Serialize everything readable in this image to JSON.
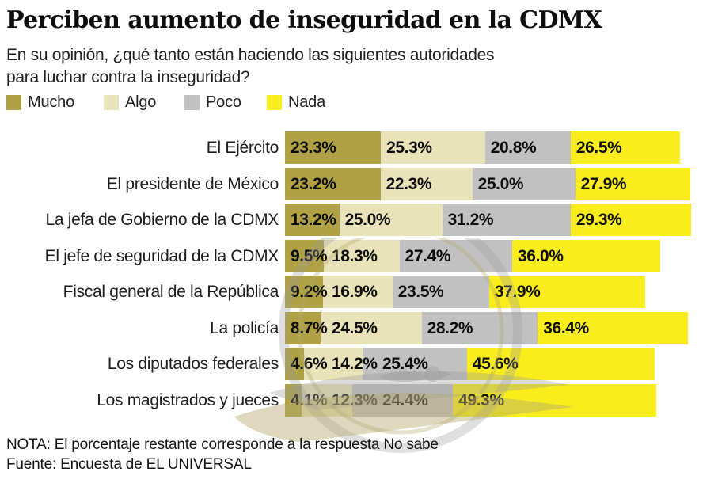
{
  "title": "Perciben aumento de inseguridad en la CDMX",
  "subtitle": {
    "line1": "En su opinión, ¿qué tanto están haciendo las siguientes autoridades",
    "line2": "para luchar contra la inseguridad?"
  },
  "legend": [
    {
      "label": "Mucho",
      "color": "#b0a244"
    },
    {
      "label": "Algo",
      "color": "#e8e3b8"
    },
    {
      "label": "Poco",
      "color": "#c1c1c1"
    },
    {
      "label": "Nada",
      "color": "#f9ed1d"
    }
  ],
  "chart_data": {
    "type": "bar",
    "stacked": true,
    "orientation": "horizontal",
    "unit": "%",
    "xlim": [
      0,
      100
    ],
    "value_labels": "inside-start, one decimal, percent sign",
    "categories": [
      "El Ejército",
      "El presidente de México",
      "La jefa de Gobierno de la CDMX",
      "El jefe de seguridad de la CDMX",
      "Fiscal general de la República",
      "La policía",
      "Los diputados federales",
      "Los magistrados y jueces"
    ],
    "series": [
      {
        "name": "Mucho",
        "color": "#b0a244",
        "values": [
          23.3,
          23.2,
          13.2,
          9.5,
          9.2,
          8.7,
          4.6,
          4.1
        ]
      },
      {
        "name": "Algo",
        "color": "#e8e3b8",
        "values": [
          25.3,
          22.3,
          25.0,
          18.3,
          16.9,
          24.5,
          14.2,
          12.3
        ]
      },
      {
        "name": "Poco",
        "color": "#c1c1c1",
        "values": [
          20.8,
          25.0,
          31.2,
          27.4,
          23.5,
          28.2,
          25.4,
          24.4
        ]
      },
      {
        "name": "Nada",
        "color": "#f9ed1d",
        "values": [
          26.5,
          27.9,
          29.3,
          36.0,
          37.9,
          36.4,
          45.6,
          49.3
        ]
      }
    ]
  },
  "note": "NOTA: El porcentaje restante corresponde a la respuesta No sabe",
  "source": "Fuente: Encuesta de EL UNIVERSAL",
  "watermark": "el-universal-eagle"
}
